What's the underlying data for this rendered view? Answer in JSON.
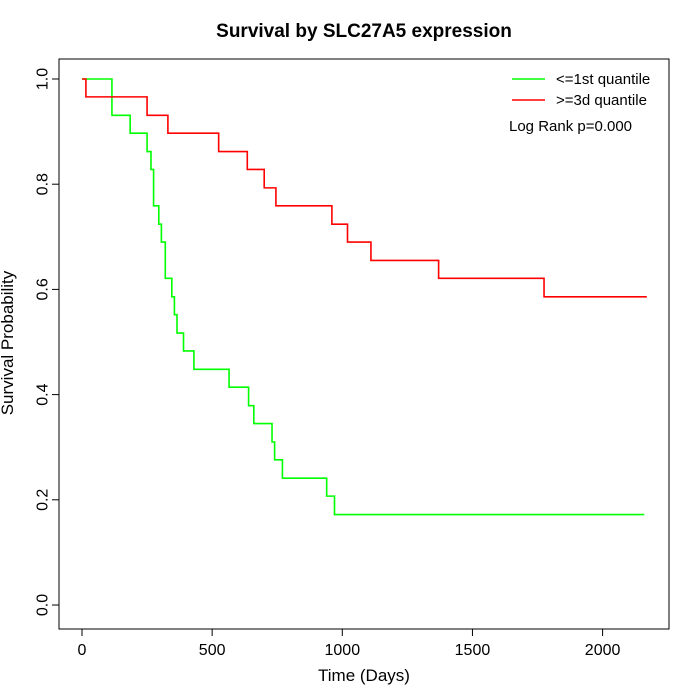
{
  "chart_data": {
    "type": "line",
    "title": "Survival by SLC27A5 expression",
    "xlabel": "Time (Days)",
    "ylabel": "Survival Probability",
    "xlim": [
      0,
      2200
    ],
    "ylim": [
      0,
      1
    ],
    "x_ticks": [
      0,
      500,
      1000,
      1500,
      2000
    ],
    "x_tick_labels": [
      "0",
      "500",
      "1000",
      "1500",
      "2000"
    ],
    "y_ticks": [
      0,
      0.2,
      0.4,
      0.6,
      0.8,
      1
    ],
    "y_tick_labels": [
      "0.0",
      "0.2",
      "0.4",
      "0.6",
      "0.8",
      "1.0"
    ],
    "grid": false,
    "legend_position": "top-right",
    "annotation": "Log Rank p=0.000",
    "series": [
      {
        "name": "<=1st quantile",
        "color": "#00ff00",
        "step": true,
        "x": [
          0,
          115,
          185,
          250,
          265,
          275,
          295,
          305,
          320,
          345,
          355,
          365,
          390,
          430,
          565,
          640,
          660,
          730,
          740,
          770,
          940,
          970,
          2160
        ],
        "y": [
          1.0,
          0.931,
          0.897,
          0.862,
          0.828,
          0.759,
          0.724,
          0.69,
          0.621,
          0.586,
          0.552,
          0.517,
          0.483,
          0.448,
          0.414,
          0.379,
          0.345,
          0.31,
          0.276,
          0.241,
          0.207,
          0.172,
          0.172
        ]
      },
      {
        "name": ">=3d quantile",
        "color": "#ff0000",
        "step": true,
        "x": [
          0,
          15,
          250,
          330,
          525,
          635,
          700,
          745,
          960,
          1020,
          1110,
          1370,
          1775,
          2170
        ],
        "y": [
          1.0,
          0.966,
          0.931,
          0.897,
          0.862,
          0.828,
          0.793,
          0.759,
          0.724,
          0.69,
          0.655,
          0.621,
          0.586,
          0.586
        ]
      }
    ]
  }
}
